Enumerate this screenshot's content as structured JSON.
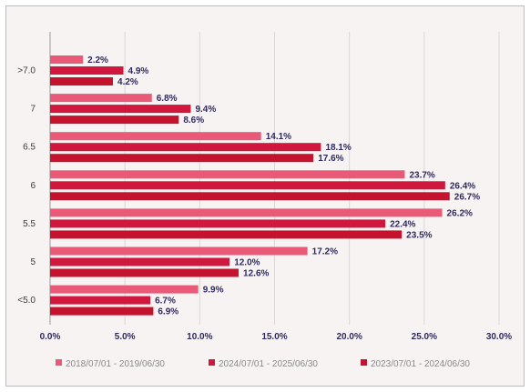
{
  "chart_data": {
    "type": "bar",
    "orientation": "horizontal",
    "categories": [
      ">7.0",
      "7",
      "6.5",
      "6",
      "5.5",
      "5",
      "<5.0"
    ],
    "series": [
      {
        "name": "2018/07/01 - 2019/06/30",
        "color": "#e85a78",
        "values": [
          2.2,
          6.8,
          14.1,
          23.7,
          26.2,
          17.2,
          9.9
        ]
      },
      {
        "name": "2024/07/01 - 2025/06/30",
        "color": "#d0173d",
        "values": [
          4.9,
          9.4,
          18.1,
          26.4,
          22.4,
          12.0,
          6.7
        ]
      },
      {
        "name": "2023/07/01 - 2024/06/30",
        "color": "#c4132f",
        "values": [
          4.2,
          8.6,
          17.6,
          26.7,
          23.5,
          12.6,
          6.9
        ]
      }
    ],
    "x_ticks": [
      "0.0%",
      "5.0%",
      "10.0%",
      "15.0%",
      "20.0%",
      "25.0%",
      "30.0%"
    ],
    "xlim": [
      0,
      30
    ],
    "grid": "vertical",
    "legend_position": "bottom",
    "value_suffix": "%"
  }
}
